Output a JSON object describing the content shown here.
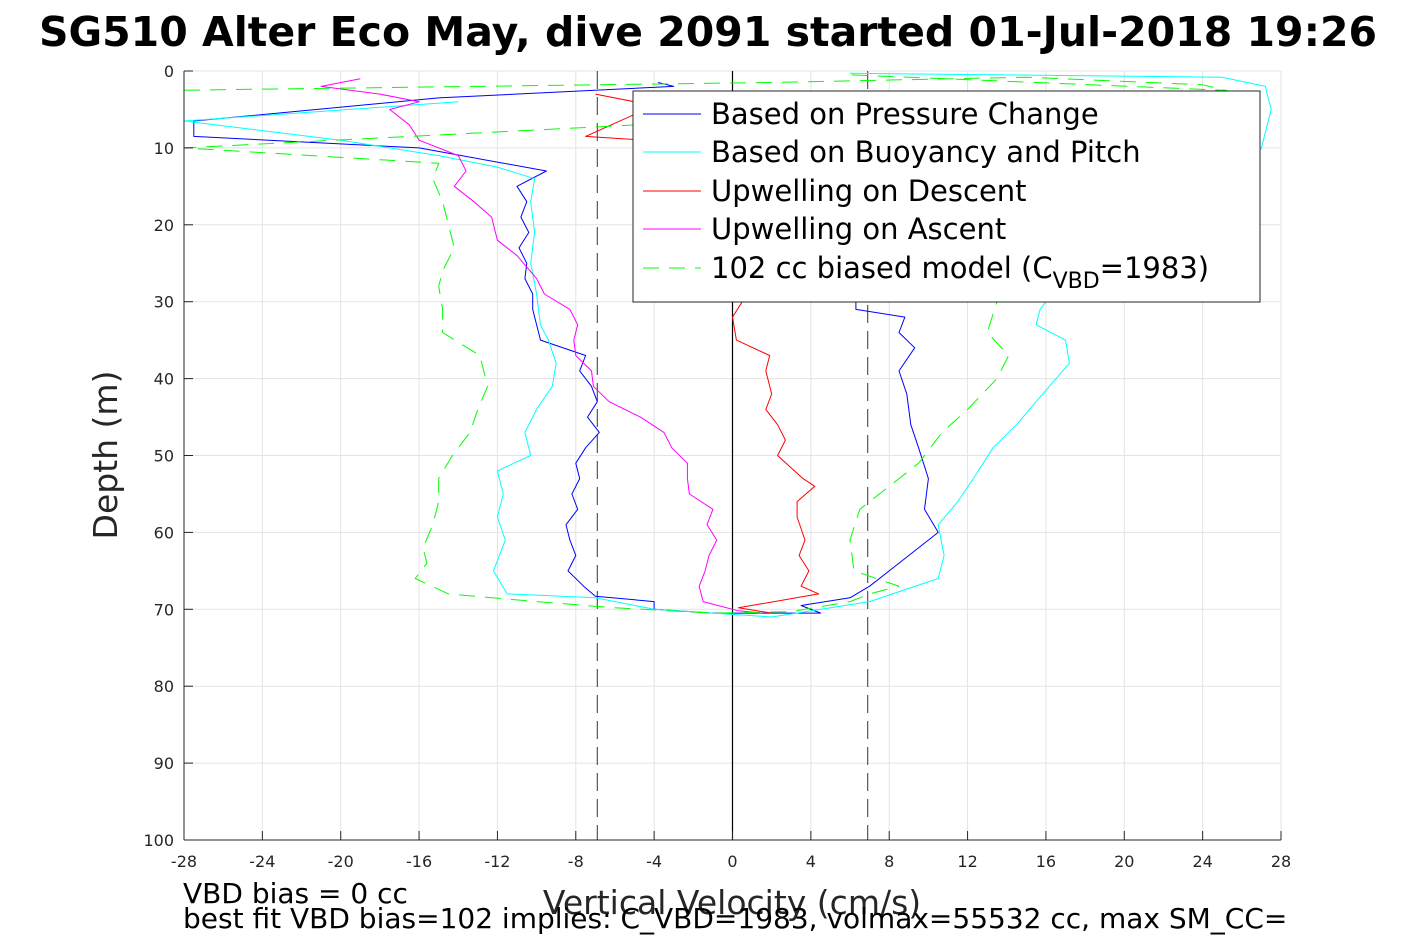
{
  "chart_data": {
    "type": "line",
    "title": "SG510 Alter Eco May, dive 2091 started 01-Jul-2018 19:26",
    "xlabel": "Vertical Velocity (cm/s)",
    "ylabel": "Depth (m)",
    "xlim": [
      -28,
      28
    ],
    "ylim": [
      0,
      100
    ],
    "y_reversed": true,
    "xticks": [
      -28,
      -24,
      -20,
      -16,
      -12,
      -8,
      -4,
      0,
      4,
      8,
      12,
      16,
      20,
      24,
      28
    ],
    "yticks": [
      0,
      10,
      20,
      30,
      40,
      50,
      60,
      70,
      80,
      90,
      100
    ],
    "grid": true,
    "legend_position": "top-right",
    "reference_lines": [
      {
        "x": -6.9,
        "style": "dashed",
        "color": "#555555"
      },
      {
        "x": 6.9,
        "style": "dashed",
        "color": "#555555"
      },
      {
        "x": 0,
        "style": "solid",
        "color": "#000000"
      }
    ],
    "series": [
      {
        "name": "Based on Pressure Change",
        "color": "#0000ff",
        "dash": "solid",
        "points": [
          [
            -3.8,
            1.5
          ],
          [
            -3.0,
            2.0
          ],
          [
            -15,
            3.5
          ],
          [
            -27.5,
            6.5
          ],
          [
            -27.5,
            8.5
          ],
          [
            -16,
            10
          ],
          [
            -9.5,
            13
          ],
          [
            -11,
            15
          ],
          [
            -10.5,
            17
          ],
          [
            -10.8,
            19
          ],
          [
            -10.4,
            21
          ],
          [
            -10.9,
            23
          ],
          [
            -10.5,
            25
          ],
          [
            -10.6,
            27
          ],
          [
            -10.2,
            29
          ],
          [
            -10.2,
            31
          ],
          [
            -10,
            33
          ],
          [
            -9.8,
            35
          ],
          [
            -7.5,
            37
          ],
          [
            -7.8,
            39
          ],
          [
            -7.2,
            41
          ],
          [
            -6.9,
            43
          ],
          [
            -7.4,
            45
          ],
          [
            -6.8,
            47
          ],
          [
            -7.5,
            49
          ],
          [
            -8,
            51
          ],
          [
            -7.8,
            53
          ],
          [
            -8.2,
            55
          ],
          [
            -7.9,
            57
          ],
          [
            -8.5,
            59
          ],
          [
            -8.3,
            61
          ],
          [
            -8,
            63
          ],
          [
            -8.4,
            65
          ],
          [
            -7.6,
            67
          ],
          [
            -7,
            68.3
          ],
          [
            -4,
            69
          ],
          [
            -4,
            70
          ],
          [
            -1,
            70.5
          ],
          [
            4.5,
            70.5
          ],
          [
            3.5,
            69.5
          ],
          [
            6,
            68.5
          ],
          [
            7,
            67
          ],
          [
            9,
            63
          ],
          [
            10.5,
            60
          ],
          [
            9.8,
            57
          ],
          [
            10,
            53
          ],
          [
            9.5,
            49
          ],
          [
            9.1,
            46
          ],
          [
            8.9,
            42
          ],
          [
            8.5,
            39
          ],
          [
            9.3,
            36
          ],
          [
            8.5,
            34
          ],
          [
            8.8,
            32
          ],
          [
            6.3,
            31
          ],
          [
            6.3,
            30
          ]
        ]
      },
      {
        "name": "Based on Buoyancy and Pitch",
        "color": "#00ffff",
        "dash": "solid",
        "points": [
          [
            -14,
            4
          ],
          [
            -28,
            6.5
          ],
          [
            -20,
            9
          ],
          [
            -15,
            11
          ],
          [
            -12,
            12.5
          ],
          [
            -10.1,
            14
          ],
          [
            -10.3,
            17
          ],
          [
            -10.1,
            21
          ],
          [
            -10.3,
            25
          ],
          [
            -10,
            29
          ],
          [
            -9.8,
            33
          ],
          [
            -9.4,
            35
          ],
          [
            -9,
            38
          ],
          [
            -9.2,
            41
          ],
          [
            -10,
            44
          ],
          [
            -10.6,
            47
          ],
          [
            -10.3,
            50
          ],
          [
            -12,
            52
          ],
          [
            -11.7,
            55
          ],
          [
            -12,
            58
          ],
          [
            -11.6,
            61
          ],
          [
            -12.2,
            65
          ],
          [
            -11.5,
            68
          ],
          [
            -7,
            68.5
          ],
          [
            -4,
            70
          ],
          [
            2,
            71
          ],
          [
            7,
            69
          ],
          [
            10.5,
            66
          ],
          [
            10.8,
            63
          ],
          [
            10.5,
            59
          ],
          [
            11.5,
            56
          ],
          [
            12.3,
            53
          ],
          [
            13.3,
            49
          ],
          [
            14.5,
            46
          ],
          [
            15.5,
            43
          ],
          [
            17.2,
            38
          ],
          [
            17,
            35
          ],
          [
            15.5,
            33
          ],
          [
            15.7,
            31
          ],
          [
            16,
            30
          ],
          [
            21,
            25
          ],
          [
            24,
            20
          ],
          [
            27,
            10
          ],
          [
            27.5,
            5
          ],
          [
            27.2,
            2
          ],
          [
            25,
            0.8
          ],
          [
            6,
            0.3
          ]
        ]
      },
      {
        "name": "Upwelling on Descent",
        "color": "#ff0000",
        "dash": "solid",
        "points": [
          [
            -7,
            3
          ],
          [
            -4,
            4.5
          ],
          [
            -7.5,
            8.5
          ],
          [
            -4.5,
            9
          ],
          [
            0.5,
            30
          ],
          [
            0,
            32
          ],
          [
            0.2,
            35
          ],
          [
            1.9,
            37
          ],
          [
            1.7,
            39
          ],
          [
            2,
            42
          ],
          [
            1.7,
            44
          ],
          [
            2.3,
            46
          ],
          [
            2.7,
            48
          ],
          [
            2.3,
            50
          ],
          [
            3.6,
            53
          ],
          [
            4.2,
            54
          ],
          [
            3.3,
            56
          ],
          [
            3.3,
            58
          ],
          [
            3.7,
            61
          ],
          [
            3.4,
            63
          ],
          [
            3.9,
            65
          ],
          [
            3.5,
            67
          ],
          [
            4.4,
            68
          ],
          [
            0.3,
            69.8
          ],
          [
            2,
            70.5
          ]
        ]
      },
      {
        "name": "Upwelling on Ascent",
        "color": "#ff00ff",
        "dash": "solid",
        "points": [
          [
            -19,
            1
          ],
          [
            -21,
            2
          ],
          [
            -18,
            3
          ],
          [
            -16,
            4
          ],
          [
            -17.5,
            5
          ],
          [
            -16.5,
            7
          ],
          [
            -16,
            9
          ],
          [
            -14,
            11
          ],
          [
            -13.6,
            13
          ],
          [
            -14.2,
            15
          ],
          [
            -13.2,
            17
          ],
          [
            -12.3,
            19
          ],
          [
            -12,
            22
          ],
          [
            -11,
            24
          ],
          [
            -10,
            27
          ],
          [
            -9.6,
            29
          ],
          [
            -8.3,
            31
          ],
          [
            -7.9,
            33
          ],
          [
            -8.1,
            35
          ],
          [
            -8,
            37
          ],
          [
            -7.2,
            39
          ],
          [
            -7.1,
            41
          ],
          [
            -6.3,
            43
          ],
          [
            -4.7,
            45
          ],
          [
            -3.5,
            47
          ],
          [
            -3.1,
            49
          ],
          [
            -2.3,
            51
          ],
          [
            -2.3,
            53
          ],
          [
            -2.2,
            55
          ],
          [
            -1,
            57
          ],
          [
            -1.3,
            59
          ],
          [
            -0.8,
            61
          ],
          [
            -1.2,
            63
          ],
          [
            -1.4,
            65
          ],
          [
            -1.7,
            67
          ],
          [
            -1.5,
            69
          ],
          [
            0.3,
            70.2
          ],
          [
            1.5,
            70.5
          ]
        ]
      },
      {
        "name": "102 cc biased model (C",
        "name_sub": "VBD",
        "name_tail": "=1983)",
        "color": "#00ff00",
        "dash": "dashed",
        "points": [
          [
            -28,
            2.5
          ],
          [
            2,
            1.5
          ],
          [
            15,
            0.8
          ],
          [
            24,
            1.8
          ],
          [
            26,
            3
          ],
          [
            -28,
            10
          ],
          [
            -15,
            12
          ],
          [
            -15.3,
            14
          ],
          [
            -14.8,
            17
          ],
          [
            -14.5,
            20
          ],
          [
            -14.2,
            23
          ],
          [
            -14.8,
            26
          ],
          [
            -15,
            28
          ],
          [
            -14.8,
            31
          ],
          [
            -14.8,
            34
          ],
          [
            -12.9,
            37
          ],
          [
            -12.5,
            41
          ],
          [
            -13,
            44
          ],
          [
            -13.4,
            47
          ],
          [
            -14.3,
            50
          ],
          [
            -15,
            53
          ],
          [
            -15,
            56
          ],
          [
            -15.3,
            59
          ],
          [
            -15.8,
            62
          ],
          [
            -15.6,
            64
          ],
          [
            -16.2,
            66
          ],
          [
            -14.5,
            68
          ],
          [
            -10,
            69
          ],
          [
            -6,
            69.8
          ],
          [
            -1,
            70.5
          ],
          [
            3,
            70.3
          ],
          [
            6,
            69
          ],
          [
            7,
            68
          ],
          [
            8.5,
            67
          ],
          [
            6.2,
            65
          ],
          [
            6,
            61
          ],
          [
            6.5,
            57
          ],
          [
            8,
            54
          ],
          [
            9.5,
            51
          ],
          [
            10.7,
            47
          ],
          [
            12,
            44
          ],
          [
            13.5,
            40
          ],
          [
            14.1,
            37
          ],
          [
            13,
            34
          ],
          [
            13.5,
            30
          ],
          [
            16,
            27
          ],
          [
            19,
            24
          ],
          [
            22,
            20
          ],
          [
            24,
            16
          ],
          [
            25,
            12
          ],
          [
            25.5,
            8
          ],
          [
            26.5,
            4
          ],
          [
            25,
            2.5
          ],
          [
            6,
            0.5
          ]
        ]
      }
    ],
    "annotations": [
      "VBD bias = 0 cc",
      "best fit VBD bias=102 implies: C_VBD=1983, volmax=55532 cc, max SM_CC="
    ]
  }
}
